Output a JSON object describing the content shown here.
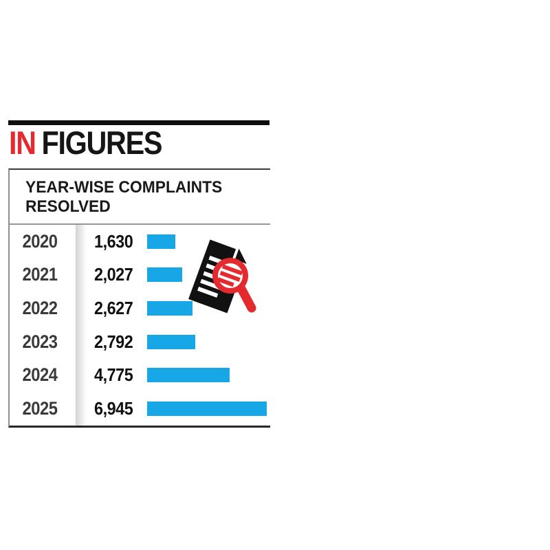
{
  "header": {
    "word_red": "IN",
    "word_black": "FIGURES"
  },
  "panel": {
    "title_line1": "YEAR-WISE COMPLAINTS",
    "title_line2": "RESOLVED"
  },
  "chart_data": {
    "type": "bar",
    "orientation": "horizontal",
    "title": "YEAR-WISE COMPLAINTS RESOLVED",
    "categories": [
      "2020",
      "2021",
      "2022",
      "2023",
      "2024",
      "2025"
    ],
    "values": [
      1630,
      2027,
      2627,
      2792,
      4775,
      6945
    ],
    "value_labels": [
      "1,630",
      "2,027",
      "2,627",
      "2,792",
      "4,775",
      "6,945"
    ],
    "xlim": [
      0,
      6945
    ],
    "grid": false,
    "legend": false,
    "bar_color": "#18a7e6"
  },
  "colors": {
    "accent_red": "#e42a2e",
    "bar_blue": "#18a7e6",
    "icon_black": "#111111"
  },
  "icon": {
    "name": "document-search-icon"
  }
}
